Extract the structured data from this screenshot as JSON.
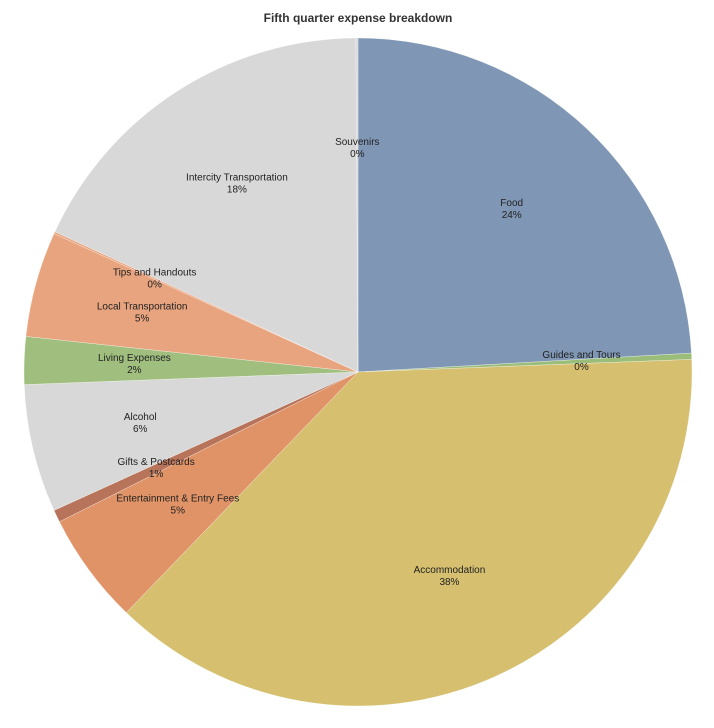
{
  "chart_data": {
    "type": "pie",
    "title": "Fifth quarter expense breakdown",
    "categories": [
      "Food",
      "Guides and Tours",
      "Accommodation",
      "Entertainment & Entry Fees",
      "Gifts & Postcards",
      "Alcohol",
      "Living Expenses",
      "Local Transportation",
      "Tips and Handouts",
      "Intercity Transportation",
      "Souvenirs"
    ],
    "values": [
      24.1,
      0.3,
      37.8,
      5.4,
      0.6,
      6.2,
      2.3,
      5.1,
      0.1,
      18.0,
      0.1
    ],
    "value_labels": [
      "24%",
      "0%",
      "38%",
      "5%",
      "1%",
      "6%",
      "2%",
      "5%",
      "0%",
      "18%",
      "0%"
    ],
    "colors": [
      "#7f96b4",
      "#9bbd7a",
      "#d6c06f",
      "#e09367",
      "#b8745a",
      "#d8d8d8",
      "#a0bf7e",
      "#e8a47f",
      "#e8a47f",
      "#d8d8d8",
      "#d8d8d8"
    ]
  }
}
